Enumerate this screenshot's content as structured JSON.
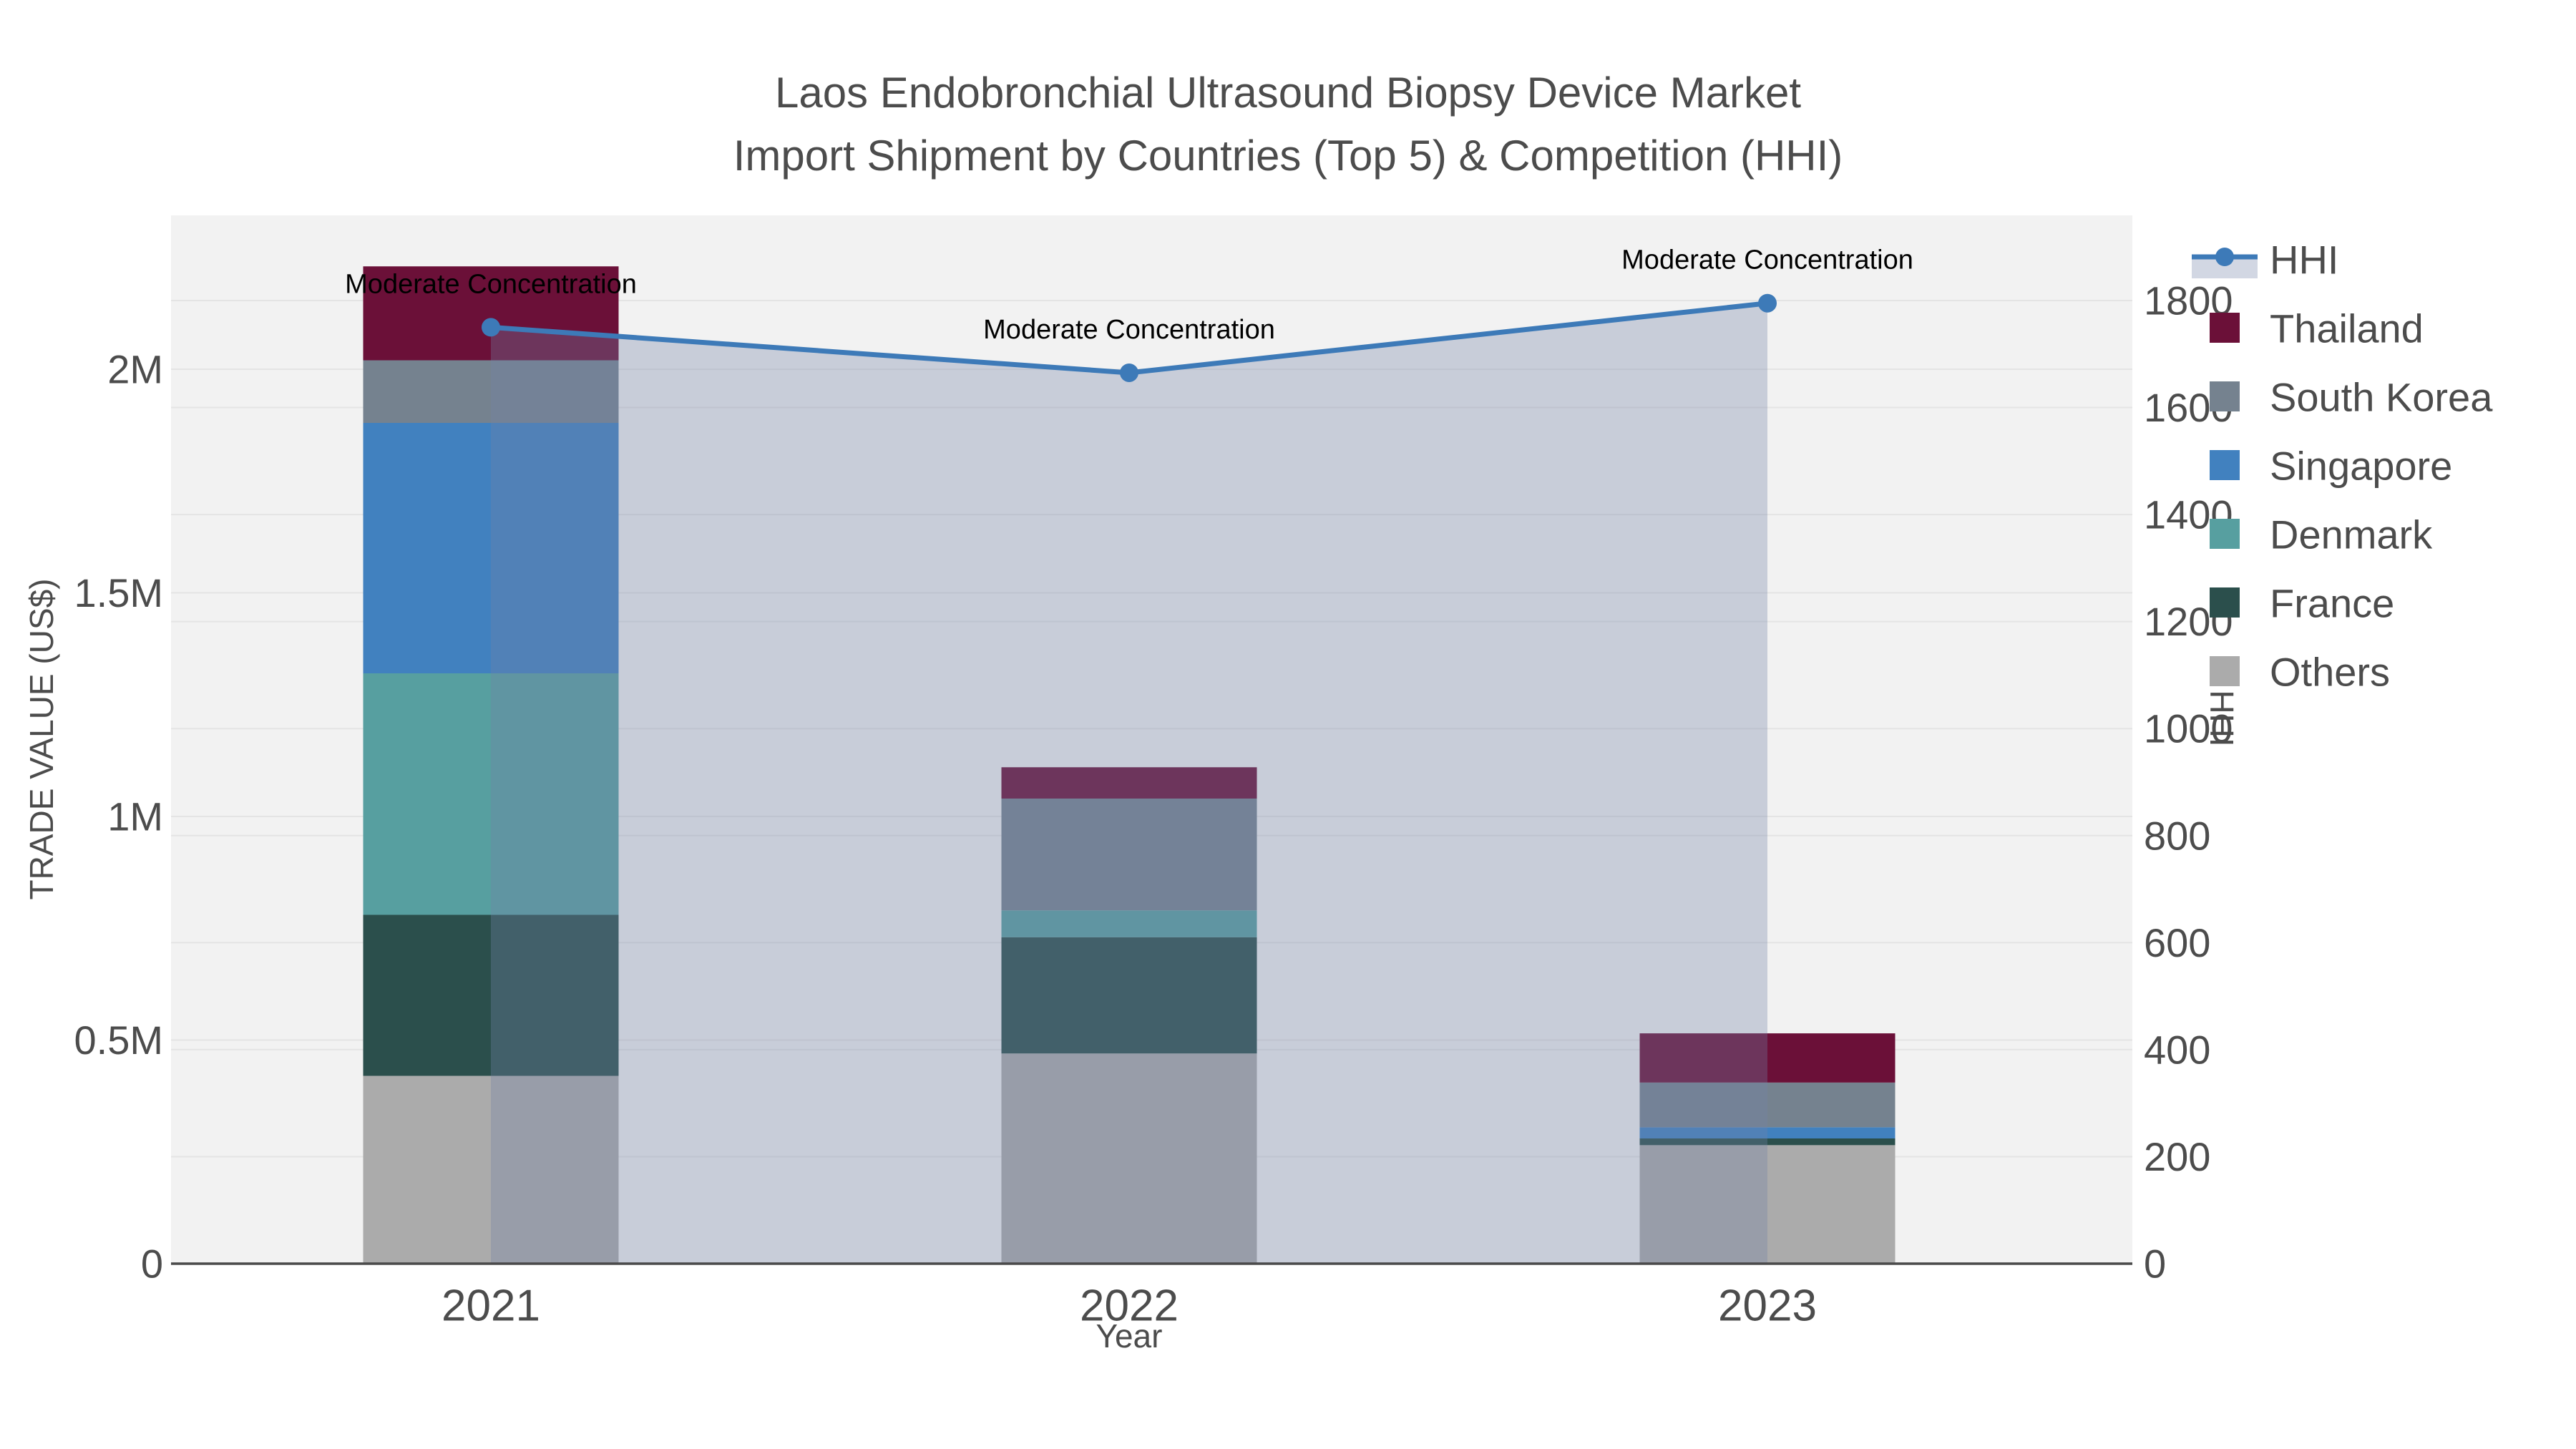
{
  "title": {
    "line1": "Laos Endobronchial Ultrasound Biopsy Device Market",
    "line2": "Import Shipment by Countries (Top 5) & Competition (HHI)"
  },
  "axes": {
    "x": {
      "title": "Year",
      "categories": [
        "2021",
        "2022",
        "2023"
      ]
    },
    "y_left": {
      "title": "TRADE VALUE (US$)",
      "tick_labels": [
        "0",
        "0.5M",
        "1M",
        "1.5M",
        "2M"
      ],
      "tick_values": [
        0,
        500000,
        1000000,
        1500000,
        2000000
      ],
      "range": [
        0,
        2346000
      ]
    },
    "y_right": {
      "title": "HHI",
      "tick_labels": [
        "0",
        "200",
        "400",
        "600",
        "800",
        "1000",
        "1200",
        "1400",
        "1600",
        "1800"
      ],
      "tick_values": [
        0,
        200,
        400,
        600,
        800,
        1000,
        1200,
        1400,
        1600,
        1800
      ],
      "range": [
        0,
        1960
      ]
    }
  },
  "legend": [
    {
      "label": "HHI",
      "type": "line",
      "color": "#3d7ab8",
      "band": "#d2d7e3"
    },
    {
      "label": "Thailand",
      "type": "bar",
      "color": "#6b1038"
    },
    {
      "label": "South Korea",
      "type": "bar",
      "color": "#75828f"
    },
    {
      "label": "Singapore",
      "type": "bar",
      "color": "#4181bf"
    },
    {
      "label": "Denmark",
      "type": "bar",
      "color": "#579fa0"
    },
    {
      "label": "France",
      "type": "bar",
      "color": "#2b4f4c"
    },
    {
      "label": "Others",
      "type": "bar",
      "color": "#ababab"
    }
  ],
  "annotations": [
    {
      "year": "2021",
      "text": "Moderate Concentration"
    },
    {
      "year": "2022",
      "text": "Moderate Concentration"
    },
    {
      "year": "2023",
      "text": "Moderate Concentration"
    }
  ],
  "colors": {
    "hhi_line": "#3d7ab8",
    "hhi_fill": "rgba(116,131,167,0.33)",
    "plot_background": "#f2f2f2",
    "gridline": "#e4e4e4",
    "axis_line": "#4a4a4a",
    "text": "#4c4c4c"
  },
  "chart_data": {
    "type": "bar",
    "subtype": "stacked-bar-with-line",
    "categories": [
      "2021",
      "2022",
      "2023"
    ],
    "stack_order_bottom_to_top": [
      "Others",
      "France",
      "Denmark",
      "Singapore",
      "South Korea",
      "Thailand"
    ],
    "series": [
      {
        "name": "Thailand",
        "type": "bar",
        "axis": "left",
        "values": [
          210000,
          70000,
          110000
        ]
      },
      {
        "name": "South Korea",
        "type": "bar",
        "axis": "left",
        "values": [
          140000,
          250000,
          100000
        ]
      },
      {
        "name": "Singapore",
        "type": "bar",
        "axis": "left",
        "values": [
          560000,
          0,
          25000
        ]
      },
      {
        "name": "Denmark",
        "type": "bar",
        "axis": "left",
        "values": [
          540000,
          60000,
          0
        ]
      },
      {
        "name": "France",
        "type": "bar",
        "axis": "left",
        "values": [
          360000,
          260000,
          15000
        ]
      },
      {
        "name": "Others",
        "type": "bar",
        "axis": "left",
        "values": [
          420000,
          470000,
          265000
        ]
      },
      {
        "name": "HHI",
        "type": "line-area",
        "axis": "right",
        "values": [
          1750,
          1665,
          1795
        ]
      }
    ],
    "bar_totals": [
      2230000,
      1110000,
      515000
    ],
    "title": "Laos Endobronchial Ultrasound Biopsy Device Market — Import Shipment by Countries (Top 5) & Competition (HHI)",
    "xlabel": "Year",
    "ylabel_left": "TRADE VALUE (US$)",
    "ylabel_right": "HHI",
    "ylim_left": [
      0,
      2346000
    ],
    "ylim_right": [
      0,
      1960
    ],
    "grid": true,
    "legend_position": "right"
  }
}
